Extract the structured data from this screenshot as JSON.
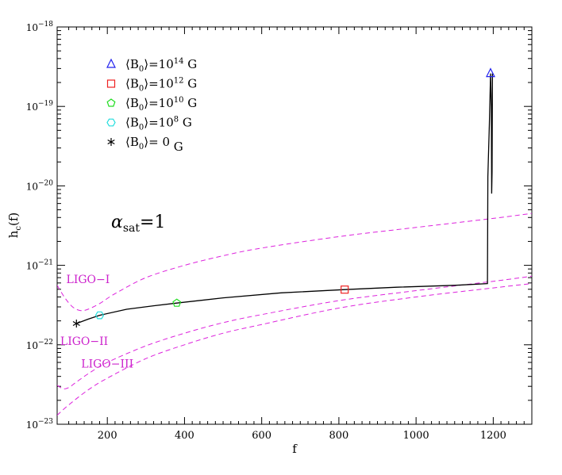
{
  "chart_data": {
    "type": "line",
    "xlabel": "f",
    "ylabel_main": "h",
    "ylabel_sub": "c",
    "ylabel_suffix": "(f)",
    "xlim": [
      70,
      1300
    ],
    "ylim": [
      1e-23,
      1e-18
    ],
    "yscale": "log",
    "x_ticks": [
      {
        "value": 200,
        "label": "200"
      },
      {
        "value": 400,
        "label": "400"
      },
      {
        "value": 600,
        "label": "600"
      },
      {
        "value": 800,
        "label": "800"
      },
      {
        "value": 1000,
        "label": "1000"
      },
      {
        "value": 1200,
        "label": "1200"
      }
    ],
    "y_ticks": [
      {
        "exp": -18,
        "base": "10",
        "sup": "−18"
      },
      {
        "exp": -19,
        "base": "10",
        "sup": "−19"
      },
      {
        "exp": -20,
        "base": "10",
        "sup": "−20"
      },
      {
        "exp": -21,
        "base": "10",
        "sup": "−21"
      },
      {
        "exp": -22,
        "base": "10",
        "sup": "−22"
      },
      {
        "exp": -23,
        "base": "10",
        "sup": "−23"
      }
    ],
    "annotation": {
      "main": "α",
      "sub": "sat",
      "rest": "=1"
    },
    "noise_curves": [
      {
        "name": "LIGO−I",
        "color": "#dd22dd",
        "x": [
          70,
          90,
          110,
          130,
          150,
          180,
          220,
          300,
          400,
          500,
          600,
          800,
          1000,
          1200,
          1300
        ],
        "y": [
          5.6e-22,
          3.9e-22,
          3e-22,
          2.7e-22,
          2.8e-22,
          3.3e-22,
          4.4e-22,
          7e-22,
          1e-21,
          1.32e-21,
          1.65e-21,
          2.3e-21,
          3e-21,
          3.9e-21,
          4.5e-21
        ]
      },
      {
        "name": "LIGO−II",
        "color": "#dd22dd",
        "x": [
          70,
          85,
          100,
          120,
          150,
          200,
          300,
          400,
          500,
          600,
          800,
          1000,
          1200,
          1300
        ],
        "y": [
          3.1e-23,
          2.8e-23,
          2.9e-23,
          3.4e-23,
          4.3e-23,
          6e-23,
          9.7e-23,
          1.4e-22,
          1.9e-22,
          2.4e-22,
          3.6e-22,
          4.8e-22,
          6.3e-22,
          7.3e-22
        ]
      },
      {
        "name": "LIGO−III",
        "color": "#dd22dd",
        "x": [
          70,
          100,
          150,
          200,
          300,
          400,
          500,
          600,
          800,
          1000,
          1200,
          1300
        ],
        "y": [
          1.3e-23,
          1.75e-23,
          2.7e-23,
          3.8e-23,
          6.7e-23,
          1e-22,
          1.4e-22,
          1.8e-22,
          2.9e-22,
          4e-22,
          5.2e-22,
          5.9e-22
        ]
      }
    ],
    "noise_labels": [
      {
        "text": "LIGO−I",
        "x": 150,
        "y": 6e-22
      },
      {
        "text": "LIGO−II",
        "x": 140,
        "y": 1e-22
      },
      {
        "text": "LIGO−III",
        "x": 200,
        "y": 5.2e-23
      }
    ],
    "signal_curve": {
      "color": "#000000",
      "x": [
        120,
        150,
        180,
        250,
        320,
        380,
        500,
        650,
        815,
        950,
        1100,
        1185,
        1186,
        1190,
        1193,
        1195,
        1196,
        1197,
        1198
      ],
      "y": [
        1.85e-22,
        2.1e-22,
        2.35e-22,
        2.8e-22,
        3.1e-22,
        3.35e-22,
        3.9e-22,
        4.5e-22,
        4.95e-22,
        5.3e-22,
        5.6e-22,
        5.9e-22,
        1.3e-20,
        6e-20,
        2.6e-19,
        1e-19,
        8e-21,
        1.5e-20,
        2.6e-19
      ]
    },
    "markers": [
      {
        "shape": "triangle",
        "color": "#2222ee",
        "x": 1193,
        "y": 2.6e-19
      },
      {
        "shape": "square",
        "color": "#ee2222",
        "x": 815,
        "y": 4.95e-22
      },
      {
        "shape": "pentagon",
        "color": "#22dd22",
        "x": 380,
        "y": 3.35e-22
      },
      {
        "shape": "hexagon",
        "color": "#22dddd",
        "x": 180,
        "y": 2.35e-22
      },
      {
        "shape": "star",
        "color": "#000000",
        "x": 120,
        "y": 1.85e-22
      }
    ],
    "legend": [
      {
        "shape": "triangle",
        "color": "#2222ee",
        "pre": "⟨B",
        "sub": "0",
        "mid": "⟩=10",
        "sup": "14",
        "post": " G"
      },
      {
        "shape": "square",
        "color": "#ee2222",
        "pre": "⟨B",
        "sub": "0",
        "mid": "⟩=10",
        "sup": "12",
        "post": " G"
      },
      {
        "shape": "pentagon",
        "color": "#22dd22",
        "pre": "⟨B",
        "sub": "0",
        "mid": "⟩=10",
        "sup": "10",
        "post": " G"
      },
      {
        "shape": "hexagon",
        "color": "#22dddd",
        "pre": "⟨B",
        "sub": "0",
        "mid": "⟩=10",
        "sup": "8",
        "post": " G"
      },
      {
        "shape": "star",
        "color": "#000000",
        "pre": "⟨B",
        "sub": "0",
        "mid": "⟩=  0",
        "sup": "",
        "post": "   G"
      }
    ]
  }
}
